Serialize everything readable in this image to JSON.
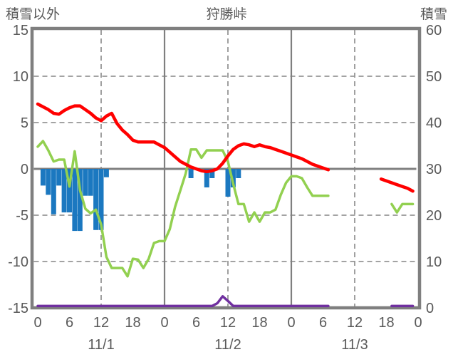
{
  "header": {
    "left_axis_title": "積雪以外",
    "title": "狩勝峠",
    "right_axis_title": "積雪"
  },
  "colors": {
    "red_line": "#ff0000",
    "green_line": "#92d050",
    "blue_bars": "#1b78c0",
    "purple_line": "#7030a0",
    "axis": "#7f7f7f",
    "grid": "#969696",
    "text": "#595959"
  },
  "chart_data": {
    "type": "line",
    "title": "狩勝峠",
    "left_axis": {
      "label": "積雪以外",
      "ticks": [
        15,
        10,
        5,
        0,
        -5,
        -10,
        -15
      ],
      "range": [
        -15,
        15
      ]
    },
    "right_axis": {
      "label": "積雪",
      "ticks": [
        60,
        50,
        40,
        30,
        20,
        10,
        0
      ],
      "range": [
        0,
        60
      ]
    },
    "x_axis": {
      "tick_labels": [
        "0",
        "6",
        "12",
        "18",
        "0",
        "6",
        "12",
        "18",
        "0",
        "6",
        "12",
        "18",
        "0"
      ],
      "tick_hours": [
        0,
        6,
        12,
        18,
        24,
        30,
        36,
        42,
        48,
        54,
        60,
        66,
        72
      ],
      "day_labels": [
        "11/1",
        "11/2",
        "11/3"
      ],
      "day_label_hours": [
        12,
        36,
        60
      ],
      "range_hours": [
        0,
        72
      ]
    },
    "gridlines": {
      "h_dashed_values": [
        10,
        5,
        -5,
        -10
      ],
      "zero_line_value": 0,
      "v_dashed_hours": [
        12,
        36,
        60
      ],
      "v_solid_hours": [
        24,
        48
      ]
    },
    "series": {
      "red_line": {
        "axis": "left",
        "hours_start": 0,
        "values": [
          7.0,
          6.7,
          6.4,
          6.0,
          5.9,
          6.3,
          6.6,
          6.8,
          6.8,
          6.4,
          6.0,
          5.5,
          5.2,
          5.7,
          6.0,
          4.9,
          4.2,
          3.7,
          3.1,
          2.9,
          2.9,
          2.9,
          2.9,
          2.6,
          2.3,
          1.8,
          1.3,
          0.8,
          0.5,
          0.2,
          0.0,
          -0.2,
          -0.3,
          -0.2,
          0.0,
          0.6,
          1.4,
          2.1,
          2.5,
          2.7,
          2.6,
          2.4,
          2.6,
          2.4,
          2.3,
          2.1,
          1.9,
          1.7,
          1.5,
          1.3,
          1.1,
          0.8,
          0.5,
          0.3,
          0.1,
          -0.1,
          null,
          null,
          null,
          null,
          null,
          null,
          null,
          null,
          null,
          -1.1,
          -1.3,
          -1.5,
          -1.7,
          -1.9,
          -2.1,
          -2.4
        ]
      },
      "green_line": {
        "axis": "left",
        "hours_start": 0,
        "values": [
          2.4,
          3.0,
          2.0,
          0.8,
          1.0,
          1.0,
          -1.9,
          1.9,
          -2.3,
          -4.3,
          -4.8,
          -4.4,
          -6.0,
          -9.5,
          -10.7,
          -10.7,
          -10.7,
          -11.6,
          -9.7,
          -9.8,
          -10.7,
          -9.7,
          -8.0,
          -7.8,
          -7.8,
          -6.5,
          -4.1,
          -2.3,
          -0.5,
          2.1,
          2.1,
          1.2,
          2.0,
          2.0,
          2.0,
          2.0,
          0.8,
          -1.6,
          -3.8,
          -3.8,
          -5.7,
          -4.7,
          -5.7,
          -4.7,
          -4.7,
          -4.4,
          -2.8,
          -1.5,
          -0.8,
          -0.8,
          -1.0,
          -2.0,
          -2.9,
          -2.9,
          -2.9,
          -2.9,
          null,
          null,
          null,
          null,
          null,
          null,
          null,
          null,
          null,
          null,
          null,
          -3.8,
          -4.7,
          -3.8,
          -3.8,
          -3.8
        ]
      },
      "blue_bars": {
        "axis": "left",
        "points": [
          {
            "t": 1,
            "v": -1.8
          },
          {
            "t": 2,
            "v": -2.8
          },
          {
            "t": 3,
            "v": -4.9
          },
          {
            "t": 4,
            "v": -1.8
          },
          {
            "t": 5,
            "v": -4.7
          },
          {
            "t": 6,
            "v": -4.7
          },
          {
            "t": 7,
            "v": -6.7
          },
          {
            "t": 8,
            "v": -6.7
          },
          {
            "t": 9,
            "v": -2.9
          },
          {
            "t": 10,
            "v": -2.9
          },
          {
            "t": 11,
            "v": -6.6
          },
          {
            "t": 12,
            "v": -6.6
          },
          {
            "t": 13,
            "v": -0.9
          },
          {
            "t": 29,
            "v": -1.0
          },
          {
            "t": 32,
            "v": -2.0
          },
          {
            "t": 33,
            "v": -1.0
          },
          {
            "t": 36,
            "v": -3.0
          },
          {
            "t": 37,
            "v": -2.0
          },
          {
            "t": 38,
            "v": -1.0
          }
        ]
      },
      "purple_snow_line": {
        "axis": "right",
        "hours_start": 0,
        "values": [
          0.4,
          0.4,
          0.4,
          0.4,
          0.4,
          0.4,
          0.4,
          0.4,
          0.4,
          0.4,
          0.4,
          0.4,
          0.4,
          0.4,
          0.4,
          0.4,
          0.4,
          0.4,
          0.4,
          0.4,
          0.4,
          0.4,
          0.4,
          0.4,
          0.4,
          0.4,
          0.4,
          0.4,
          0.4,
          0.4,
          0.4,
          0.4,
          0.4,
          0.4,
          1.0,
          2.5,
          1.5,
          0.4,
          0.4,
          0.4,
          0.4,
          0.4,
          0.4,
          0.4,
          0.4,
          0.4,
          0.4,
          0.4,
          0.4,
          0.4,
          0.4,
          0.4,
          0.4,
          0.4,
          0.4,
          0.4,
          null,
          null,
          null,
          null,
          null,
          null,
          null,
          null,
          null,
          null,
          null,
          0.4,
          0.4,
          0.4,
          0.4,
          0.4
        ]
      }
    }
  }
}
